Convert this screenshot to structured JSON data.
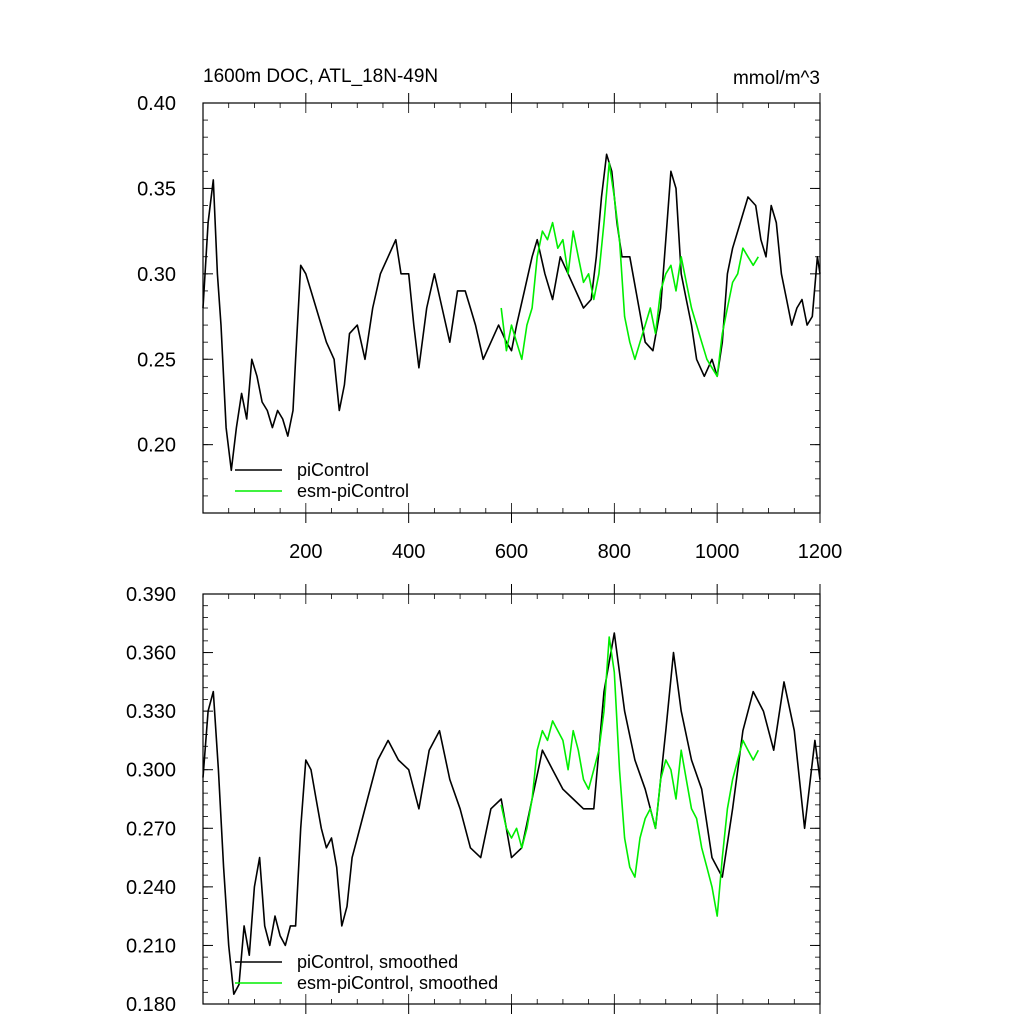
{
  "chart_data": [
    {
      "type": "line",
      "title": "1600m DOC, ATL_18N-49N",
      "units": "mmol/m^3",
      "xlim": [
        0,
        1200
      ],
      "ylim": [
        0.16,
        0.4
      ],
      "x_ticks": [
        200,
        400,
        600,
        800,
        1000,
        1200
      ],
      "y_ticks": [
        "0.40",
        "0.35",
        "0.30",
        "0.25",
        "0.20"
      ],
      "legend_placement": "bottom-left",
      "colors": {
        "piControl": "#000000",
        "esm": "#00ee00"
      },
      "series": [
        {
          "name": "piControl",
          "x": [
            0,
            10,
            20,
            28,
            35,
            45,
            55,
            65,
            75,
            85,
            95,
            105,
            115,
            125,
            135,
            145,
            155,
            165,
            175,
            180,
            190,
            200,
            210,
            225,
            240,
            255,
            265,
            275,
            285,
            300,
            315,
            330,
            345,
            360,
            375,
            385,
            400,
            410,
            420,
            435,
            450,
            465,
            480,
            495,
            510,
            520,
            530,
            545,
            560,
            575,
            590,
            600,
            610,
            625,
            640,
            650,
            665,
            680,
            695,
            710,
            725,
            740,
            755,
            765,
            775,
            785,
            795,
            805,
            815,
            830,
            845,
            860,
            875,
            890,
            900,
            910,
            920,
            930,
            940,
            950,
            960,
            975,
            990,
            1000,
            1010,
            1020,
            1030,
            1045,
            1060,
            1075,
            1085,
            1095,
            1105,
            1115,
            1125,
            1135,
            1145,
            1155,
            1165,
            1175,
            1185,
            1195,
            1200
          ],
          "values": [
            0.28,
            0.33,
            0.355,
            0.3,
            0.27,
            0.21,
            0.185,
            0.21,
            0.23,
            0.215,
            0.25,
            0.24,
            0.225,
            0.22,
            0.21,
            0.22,
            0.215,
            0.205,
            0.22,
            0.25,
            0.305,
            0.3,
            0.29,
            0.275,
            0.26,
            0.25,
            0.22,
            0.235,
            0.265,
            0.27,
            0.25,
            0.28,
            0.3,
            0.31,
            0.32,
            0.3,
            0.3,
            0.27,
            0.245,
            0.28,
            0.3,
            0.28,
            0.26,
            0.29,
            0.29,
            0.28,
            0.27,
            0.25,
            0.26,
            0.27,
            0.26,
            0.255,
            0.27,
            0.29,
            0.31,
            0.32,
            0.3,
            0.285,
            0.31,
            0.3,
            0.29,
            0.28,
            0.285,
            0.31,
            0.345,
            0.37,
            0.36,
            0.33,
            0.31,
            0.31,
            0.285,
            0.26,
            0.255,
            0.28,
            0.32,
            0.36,
            0.35,
            0.3,
            0.285,
            0.27,
            0.25,
            0.24,
            0.25,
            0.24,
            0.26,
            0.3,
            0.315,
            0.33,
            0.345,
            0.34,
            0.32,
            0.31,
            0.34,
            0.33,
            0.3,
            0.285,
            0.27,
            0.28,
            0.285,
            0.27,
            0.275,
            0.31,
            0.3
          ]
        },
        {
          "name": "esm-piControl",
          "x": [
            580,
            590,
            600,
            610,
            620,
            630,
            640,
            650,
            660,
            670,
            680,
            690,
            700,
            710,
            720,
            730,
            740,
            750,
            760,
            770,
            780,
            790,
            800,
            810,
            820,
            830,
            840,
            850,
            860,
            870,
            880,
            890,
            900,
            910,
            920,
            930,
            940,
            950,
            960,
            970,
            980,
            990,
            1000,
            1010,
            1020,
            1030,
            1040,
            1050,
            1060,
            1070,
            1080
          ],
          "values": [
            0.28,
            0.255,
            0.27,
            0.26,
            0.25,
            0.27,
            0.28,
            0.31,
            0.325,
            0.32,
            0.33,
            0.315,
            0.32,
            0.3,
            0.325,
            0.31,
            0.295,
            0.3,
            0.285,
            0.3,
            0.33,
            0.365,
            0.345,
            0.32,
            0.275,
            0.26,
            0.25,
            0.26,
            0.27,
            0.28,
            0.265,
            0.29,
            0.3,
            0.305,
            0.29,
            0.31,
            0.295,
            0.28,
            0.27,
            0.26,
            0.25,
            0.245,
            0.24,
            0.265,
            0.28,
            0.295,
            0.3,
            0.315,
            0.31,
            0.305,
            0.31
          ]
        }
      ]
    },
    {
      "type": "line",
      "title": "",
      "xlim": [
        0,
        1200
      ],
      "ylim": [
        0.18,
        0.39
      ],
      "y_ticks": [
        "0.390",
        "0.360",
        "0.330",
        "0.300",
        "0.270",
        "0.240",
        "0.210",
        "0.180"
      ],
      "legend_placement": "bottom-left",
      "colors": {
        "piControl": "#000000",
        "esm": "#00ee00"
      },
      "series": [
        {
          "name": "piControl, smoothed",
          "x": [
            0,
            10,
            20,
            30,
            40,
            50,
            60,
            70,
            80,
            90,
            100,
            110,
            120,
            130,
            140,
            150,
            160,
            170,
            180,
            190,
            200,
            210,
            220,
            230,
            240,
            250,
            260,
            270,
            280,
            290,
            300,
            320,
            340,
            360,
            380,
            400,
            420,
            440,
            460,
            480,
            500,
            520,
            540,
            560,
            580,
            600,
            620,
            640,
            660,
            680,
            700,
            720,
            740,
            760,
            780,
            800,
            820,
            840,
            860,
            880,
            900,
            915,
            930,
            950,
            970,
            990,
            1010,
            1030,
            1050,
            1070,
            1090,
            1110,
            1130,
            1150,
            1170,
            1190,
            1200
          ],
          "values": [
            0.296,
            0.33,
            0.34,
            0.3,
            0.25,
            0.21,
            0.185,
            0.19,
            0.22,
            0.205,
            0.24,
            0.255,
            0.22,
            0.21,
            0.225,
            0.215,
            0.21,
            0.22,
            0.22,
            0.27,
            0.305,
            0.3,
            0.285,
            0.27,
            0.26,
            0.265,
            0.25,
            0.22,
            0.23,
            0.255,
            0.265,
            0.285,
            0.305,
            0.315,
            0.305,
            0.3,
            0.28,
            0.31,
            0.32,
            0.295,
            0.28,
            0.26,
            0.255,
            0.28,
            0.285,
            0.255,
            0.26,
            0.285,
            0.31,
            0.3,
            0.29,
            0.285,
            0.28,
            0.28,
            0.34,
            0.37,
            0.33,
            0.305,
            0.29,
            0.27,
            0.32,
            0.36,
            0.33,
            0.305,
            0.29,
            0.255,
            0.245,
            0.28,
            0.32,
            0.34,
            0.33,
            0.31,
            0.345,
            0.32,
            0.27,
            0.315,
            0.295
          ]
        },
        {
          "name": "esm-piControl, smoothed",
          "x": [
            580,
            590,
            600,
            610,
            620,
            630,
            640,
            650,
            660,
            670,
            680,
            690,
            700,
            710,
            720,
            730,
            740,
            750,
            760,
            770,
            780,
            790,
            800,
            810,
            820,
            830,
            840,
            850,
            860,
            870,
            880,
            890,
            900,
            910,
            920,
            930,
            940,
            950,
            960,
            970,
            980,
            990,
            1000,
            1010,
            1020,
            1030,
            1040,
            1050,
            1060,
            1070,
            1080
          ],
          "values": [
            0.282,
            0.27,
            0.265,
            0.27,
            0.26,
            0.27,
            0.285,
            0.31,
            0.32,
            0.315,
            0.325,
            0.32,
            0.315,
            0.3,
            0.32,
            0.31,
            0.295,
            0.29,
            0.3,
            0.31,
            0.33,
            0.368,
            0.35,
            0.3,
            0.265,
            0.25,
            0.245,
            0.265,
            0.275,
            0.28,
            0.27,
            0.295,
            0.305,
            0.3,
            0.285,
            0.31,
            0.295,
            0.28,
            0.275,
            0.26,
            0.25,
            0.24,
            0.225,
            0.255,
            0.28,
            0.295,
            0.305,
            0.315,
            0.31,
            0.305,
            0.31
          ]
        }
      ]
    }
  ]
}
